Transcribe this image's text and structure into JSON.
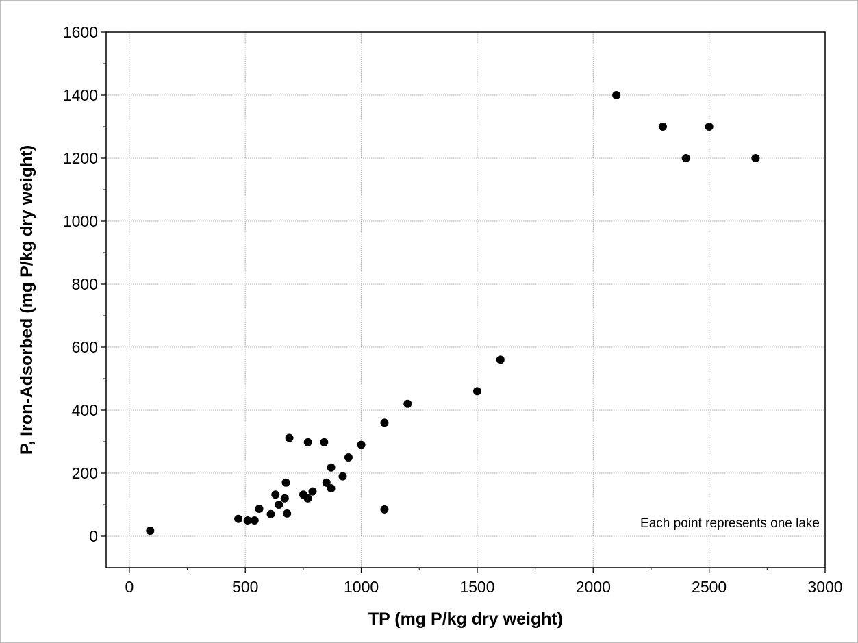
{
  "chart_data": {
    "type": "scatter",
    "title": "",
    "xlabel": "TP (mg P/kg dry weight)",
    "ylabel": "P, Iron-Adsorbed (mg P/kg dry weight)",
    "annotation": "Each point represents one lake",
    "xlim": [
      -100,
      3000
    ],
    "ylim": [
      -100,
      1600
    ],
    "x_ticks": [
      0,
      500,
      1000,
      1500,
      2000,
      2500,
      3000
    ],
    "y_ticks": [
      0,
      200,
      400,
      600,
      800,
      1000,
      1200,
      1400,
      1600
    ],
    "x_tick_labels": [
      "0",
      "500",
      "1000",
      "1500",
      "2000",
      "2500",
      "3000"
    ],
    "y_tick_labels": [
      "0",
      "200",
      "400",
      "600",
      "800",
      "1000",
      "1200",
      "1400",
      "1600"
    ],
    "grid": true,
    "marker_color": "#000000",
    "points": [
      {
        "x": 90,
        "y": 17
      },
      {
        "x": 470,
        "y": 55
      },
      {
        "x": 510,
        "y": 50
      },
      {
        "x": 540,
        "y": 50
      },
      {
        "x": 560,
        "y": 87
      },
      {
        "x": 610,
        "y": 70
      },
      {
        "x": 630,
        "y": 132
      },
      {
        "x": 645,
        "y": 100
      },
      {
        "x": 670,
        "y": 120
      },
      {
        "x": 675,
        "y": 170
      },
      {
        "x": 680,
        "y": 72
      },
      {
        "x": 690,
        "y": 312
      },
      {
        "x": 750,
        "y": 132
      },
      {
        "x": 770,
        "y": 298
      },
      {
        "x": 770,
        "y": 120
      },
      {
        "x": 790,
        "y": 142
      },
      {
        "x": 840,
        "y": 298
      },
      {
        "x": 850,
        "y": 170
      },
      {
        "x": 870,
        "y": 218
      },
      {
        "x": 870,
        "y": 152
      },
      {
        "x": 920,
        "y": 190
      },
      {
        "x": 945,
        "y": 250
      },
      {
        "x": 1000,
        "y": 290
      },
      {
        "x": 1100,
        "y": 360
      },
      {
        "x": 1100,
        "y": 85
      },
      {
        "x": 1200,
        "y": 420
      },
      {
        "x": 1500,
        "y": 460
      },
      {
        "x": 1600,
        "y": 560
      },
      {
        "x": 2100,
        "y": 1400
      },
      {
        "x": 2300,
        "y": 1300
      },
      {
        "x": 2400,
        "y": 1200
      },
      {
        "x": 2500,
        "y": 1300
      },
      {
        "x": 2700,
        "y": 1200
      }
    ]
  }
}
